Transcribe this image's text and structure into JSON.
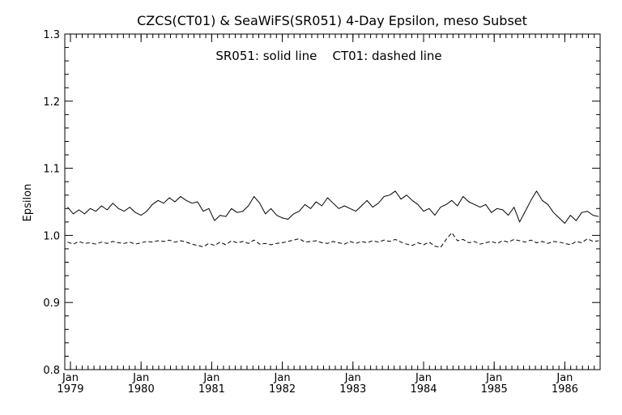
{
  "chart_data": {
    "type": "line",
    "title": "CZCS(CT01) & SeaWiFS(SR051) 4-Day Epsilon, meso Subset",
    "annotation": "SR051: solid line    CT01: dashed line",
    "ylabel": "Epsilon",
    "xlabel": "",
    "ylim": [
      0.8,
      1.3
    ],
    "xlim": [
      1978.92,
      1986.5
    ],
    "grid": false,
    "colors": {
      "line": "#000000",
      "background": "#ffffff"
    },
    "yticks": [
      {
        "value": 0.8,
        "label": "0.8"
      },
      {
        "value": 0.9,
        "label": "0.9"
      },
      {
        "value": 1.0,
        "label": "1.0"
      },
      {
        "value": 1.1,
        "label": "1.1"
      },
      {
        "value": 1.2,
        "label": "1.2"
      },
      {
        "value": 1.3,
        "label": "1.3"
      }
    ],
    "xticks": [
      {
        "value": 1979,
        "month": "Jan",
        "year": "1979"
      },
      {
        "value": 1980,
        "month": "Jan",
        "year": "1980"
      },
      {
        "value": 1981,
        "month": "Jan",
        "year": "1981"
      },
      {
        "value": 1982,
        "month": "Jan",
        "year": "1982"
      },
      {
        "value": 1983,
        "month": "Jan",
        "year": "1983"
      },
      {
        "value": 1984,
        "month": "Jan",
        "year": "1984"
      },
      {
        "value": 1985,
        "month": "Jan",
        "year": "1985"
      },
      {
        "value": 1986,
        "month": "Jan",
        "year": "1986"
      }
    ],
    "series": [
      {
        "name": "SR051",
        "style": "solid",
        "x": [
          1978.96,
          1979.04,
          1979.12,
          1979.2,
          1979.28,
          1979.36,
          1979.44,
          1979.52,
          1979.6,
          1979.68,
          1979.76,
          1979.84,
          1979.92,
          1980.0,
          1980.08,
          1980.16,
          1980.24,
          1980.32,
          1980.4,
          1980.48,
          1980.56,
          1980.64,
          1980.72,
          1980.8,
          1980.88,
          1980.96,
          1981.04,
          1981.12,
          1981.2,
          1981.28,
          1981.36,
          1981.44,
          1981.52,
          1981.6,
          1981.68,
          1981.76,
          1981.84,
          1981.92,
          1982.0,
          1982.08,
          1982.16,
          1982.24,
          1982.32,
          1982.4,
          1982.48,
          1982.56,
          1982.64,
          1982.72,
          1982.8,
          1982.88,
          1982.96,
          1983.04,
          1983.12,
          1983.2,
          1983.28,
          1983.36,
          1983.44,
          1983.52,
          1983.6,
          1983.68,
          1983.76,
          1983.84,
          1983.92,
          1984.0,
          1984.08,
          1984.16,
          1984.24,
          1984.32,
          1984.4,
          1984.48,
          1984.56,
          1984.64,
          1984.72,
          1984.8,
          1984.88,
          1984.96,
          1985.04,
          1985.12,
          1985.2,
          1985.28,
          1985.36,
          1985.44,
          1985.52,
          1985.6,
          1985.68,
          1985.76,
          1985.84,
          1985.92,
          1986.0,
          1986.08,
          1986.16,
          1986.24,
          1986.32,
          1986.4,
          1986.48
        ],
        "y": [
          1.042,
          1.032,
          1.038,
          1.032,
          1.04,
          1.036,
          1.044,
          1.038,
          1.048,
          1.04,
          1.036,
          1.042,
          1.034,
          1.03,
          1.036,
          1.046,
          1.052,
          1.048,
          1.056,
          1.05,
          1.058,
          1.052,
          1.048,
          1.05,
          1.036,
          1.04,
          1.022,
          1.03,
          1.028,
          1.04,
          1.034,
          1.036,
          1.044,
          1.058,
          1.048,
          1.032,
          1.04,
          1.03,
          1.026,
          1.024,
          1.032,
          1.036,
          1.046,
          1.04,
          1.05,
          1.044,
          1.056,
          1.048,
          1.04,
          1.044,
          1.04,
          1.036,
          1.044,
          1.052,
          1.042,
          1.048,
          1.058,
          1.06,
          1.066,
          1.054,
          1.06,
          1.052,
          1.046,
          1.036,
          1.04,
          1.03,
          1.042,
          1.046,
          1.052,
          1.044,
          1.058,
          1.05,
          1.046,
          1.042,
          1.046,
          1.034,
          1.04,
          1.038,
          1.03,
          1.042,
          1.02,
          1.036,
          1.052,
          1.066,
          1.052,
          1.046,
          1.034,
          1.026,
          1.018,
          1.03,
          1.022,
          1.034,
          1.036,
          1.03,
          1.028
        ]
      },
      {
        "name": "CT01",
        "style": "dashed",
        "x": [
          1978.96,
          1979.04,
          1979.12,
          1979.2,
          1979.28,
          1979.36,
          1979.44,
          1979.52,
          1979.6,
          1979.68,
          1979.76,
          1979.84,
          1979.92,
          1980.0,
          1980.08,
          1980.16,
          1980.24,
          1980.32,
          1980.4,
          1980.48,
          1980.56,
          1980.64,
          1980.72,
          1980.8,
          1980.88,
          1980.96,
          1981.04,
          1981.12,
          1981.2,
          1981.28,
          1981.36,
          1981.44,
          1981.52,
          1981.6,
          1981.68,
          1981.76,
          1981.84,
          1981.92,
          1982.0,
          1982.08,
          1982.16,
          1982.24,
          1982.32,
          1982.4,
          1982.48,
          1982.56,
          1982.64,
          1982.72,
          1982.8,
          1982.88,
          1982.96,
          1983.04,
          1983.12,
          1983.2,
          1983.28,
          1983.36,
          1983.44,
          1983.52,
          1983.6,
          1983.68,
          1983.76,
          1983.84,
          1983.92,
          1984.0,
          1984.08,
          1984.16,
          1984.24,
          1984.32,
          1984.4,
          1984.48,
          1984.56,
          1984.64,
          1984.72,
          1984.8,
          1984.88,
          1984.96,
          1985.04,
          1985.12,
          1985.2,
          1985.28,
          1985.36,
          1985.44,
          1985.52,
          1985.6,
          1985.68,
          1985.76,
          1985.84,
          1985.92,
          1986.0,
          1986.08,
          1986.16,
          1986.24,
          1986.32,
          1986.4,
          1986.48
        ],
        "y": [
          0.99,
          0.987,
          0.991,
          0.988,
          0.989,
          0.987,
          0.99,
          0.988,
          0.991,
          0.989,
          0.988,
          0.99,
          0.987,
          0.989,
          0.991,
          0.99,
          0.992,
          0.991,
          0.993,
          0.99,
          0.992,
          0.99,
          0.987,
          0.985,
          0.983,
          0.988,
          0.985,
          0.99,
          0.986,
          0.992,
          0.989,
          0.991,
          0.988,
          0.993,
          0.987,
          0.988,
          0.986,
          0.988,
          0.989,
          0.991,
          0.993,
          0.995,
          0.99,
          0.991,
          0.992,
          0.989,
          0.988,
          0.991,
          0.989,
          0.987,
          0.991,
          0.988,
          0.991,
          0.989,
          0.992,
          0.99,
          0.993,
          0.991,
          0.994,
          0.99,
          0.987,
          0.985,
          0.989,
          0.986,
          0.99,
          0.984,
          0.982,
          0.994,
          1.004,
          0.992,
          0.994,
          0.989,
          0.991,
          0.987,
          0.989,
          0.991,
          0.988,
          0.992,
          0.99,
          0.994,
          0.992,
          0.99,
          0.993,
          0.989,
          0.991,
          0.988,
          0.991,
          0.99,
          0.988,
          0.986,
          0.991,
          0.989,
          0.995,
          0.991,
          0.992
        ]
      }
    ]
  }
}
